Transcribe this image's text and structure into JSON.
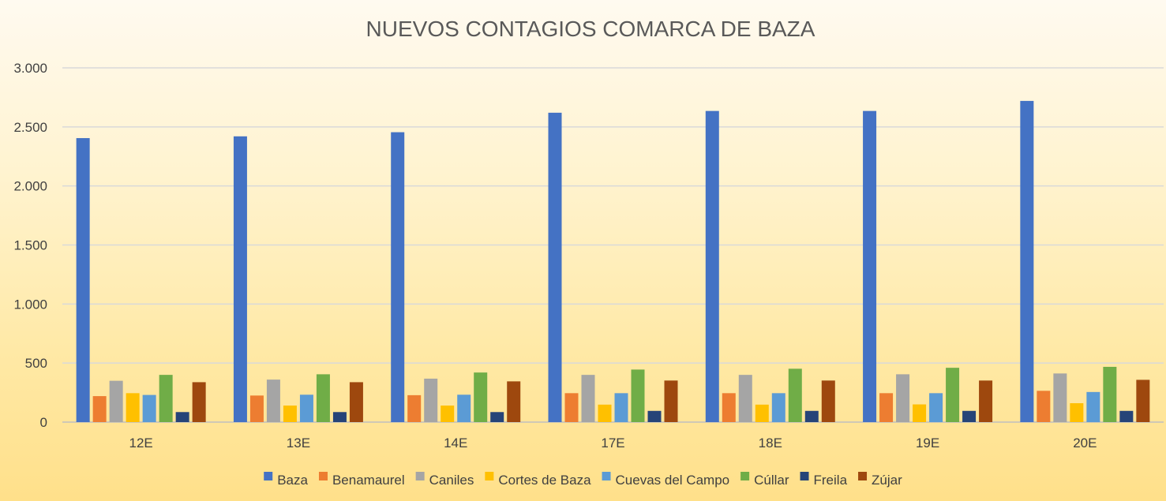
{
  "chart_data": {
    "type": "bar",
    "title": "NUEVOS CONTAGIOS COMARCA DE BAZA",
    "xlabel": "",
    "ylabel": "",
    "ylim": [
      0,
      3000
    ],
    "yticks": [
      0,
      500,
      1000,
      1500,
      2000,
      2500,
      3000
    ],
    "ytick_labels": [
      "0",
      "500",
      "1.000",
      "1.500",
      "2.000",
      "2.500",
      "3.000"
    ],
    "grid": true,
    "legend_position": "bottom",
    "categories": [
      "12E",
      "13E",
      "14E",
      "17E",
      "18E",
      "19E",
      "20E"
    ],
    "series": [
      {
        "name": "Baza",
        "color": "#4472C4",
        "values": [
          2405,
          2420,
          2455,
          2620,
          2635,
          2635,
          2720
        ]
      },
      {
        "name": "Benamaurel",
        "color": "#ED7D31",
        "values": [
          220,
          225,
          228,
          245,
          245,
          245,
          265
        ]
      },
      {
        "name": "Caniles",
        "color": "#A5A5A5",
        "values": [
          350,
          360,
          368,
          400,
          400,
          405,
          412
        ]
      },
      {
        "name": "Cortes de Baza",
        "color": "#FFC000",
        "values": [
          245,
          140,
          140,
          148,
          148,
          150,
          160
        ]
      },
      {
        "name": "Cuevas del Campo",
        "color": "#5B9BD5",
        "values": [
          230,
          232,
          232,
          245,
          245,
          245,
          255
        ]
      },
      {
        "name": "Cúllar",
        "color": "#70AD47",
        "values": [
          400,
          405,
          420,
          445,
          452,
          460,
          468
        ]
      },
      {
        "name": "Freila",
        "color": "#264478",
        "values": [
          85,
          85,
          85,
          95,
          95,
          95,
          95
        ]
      },
      {
        "name": "Zújar",
        "color": "#9E480E",
        "values": [
          338,
          338,
          345,
          352,
          352,
          352,
          358
        ]
      }
    ]
  }
}
